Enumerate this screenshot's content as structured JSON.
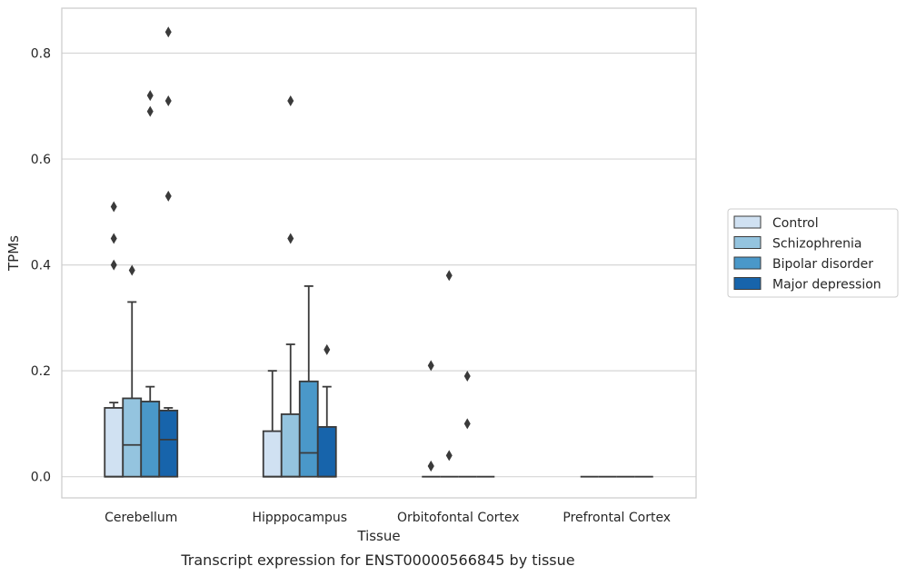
{
  "caption": "Transcript expression for ENST00000566845 by tissue",
  "chart_data": {
    "type": "box",
    "xlabel": "Tissue",
    "ylabel": "TPMs",
    "ylim": [
      -0.04,
      0.885
    ],
    "yticks": [
      0.0,
      0.2,
      0.4,
      0.6,
      0.8
    ],
    "ytick_labels": [
      "0.0",
      "0.2",
      "0.4",
      "0.6",
      "0.8"
    ],
    "grid": "horizontal",
    "legend_position": "right",
    "categories": [
      "Cerebellum",
      "Hipppocampus",
      "Orbitofontal Cortex",
      "Prefrontal Cortex"
    ],
    "series": [
      {
        "name": "Control",
        "color": "#d0e1f2",
        "boxes": [
          {
            "q1": 0.0,
            "median": 0.0,
            "q3": 0.13,
            "whisker_low": 0.0,
            "whisker_high": 0.14,
            "outliers": [
              0.51,
              0.45,
              0.4
            ]
          },
          {
            "q1": 0.0,
            "median": 0.0,
            "q3": 0.086,
            "whisker_low": 0.0,
            "whisker_high": 0.2,
            "outliers": []
          },
          {
            "q1": 0.0,
            "median": 0.0,
            "q3": 0.0,
            "whisker_low": 0.0,
            "whisker_high": 0.0,
            "outliers": [
              0.02,
              0.02,
              0.21
            ]
          },
          {
            "q1": 0.0,
            "median": 0.0,
            "q3": 0.0,
            "whisker_low": 0.0,
            "whisker_high": 0.0,
            "outliers": []
          }
        ]
      },
      {
        "name": "Schizophrenia",
        "color": "#94c4df",
        "boxes": [
          {
            "q1": 0.0,
            "median": 0.06,
            "q3": 0.148,
            "whisker_low": 0.0,
            "whisker_high": 0.33,
            "outliers": [
              0.39
            ]
          },
          {
            "q1": 0.0,
            "median": 0.0,
            "q3": 0.118,
            "whisker_low": 0.0,
            "whisker_high": 0.25,
            "outliers": [
              0.71,
              0.45
            ]
          },
          {
            "q1": 0.0,
            "median": 0.0,
            "q3": 0.0,
            "whisker_low": 0.0,
            "whisker_high": 0.0,
            "outliers": [
              0.38,
              0.04
            ]
          },
          {
            "q1": 0.0,
            "median": 0.0,
            "q3": 0.0,
            "whisker_low": 0.0,
            "whisker_high": 0.0,
            "outliers": []
          }
        ]
      },
      {
        "name": "Bipolar disorder",
        "color": "#4a98c9",
        "boxes": [
          {
            "q1": 0.0,
            "median": 0.0,
            "q3": 0.142,
            "whisker_low": 0.0,
            "whisker_high": 0.17,
            "outliers": [
              0.72,
              0.69
            ]
          },
          {
            "q1": 0.0,
            "median": 0.045,
            "q3": 0.18,
            "whisker_low": 0.0,
            "whisker_high": 0.36,
            "outliers": []
          },
          {
            "q1": 0.0,
            "median": 0.0,
            "q3": 0.0,
            "whisker_low": 0.0,
            "whisker_high": 0.0,
            "outliers": [
              0.19,
              0.1
            ]
          },
          {
            "q1": 0.0,
            "median": 0.0,
            "q3": 0.0,
            "whisker_low": 0.0,
            "whisker_high": 0.0,
            "outliers": []
          }
        ]
      },
      {
        "name": "Major depression",
        "color": "#1764ab",
        "boxes": [
          {
            "q1": 0.0,
            "median": 0.07,
            "q3": 0.125,
            "whisker_low": 0.0,
            "whisker_high": 0.13,
            "outliers": [
              0.84,
              0.71,
              0.53
            ]
          },
          {
            "q1": 0.0,
            "median": 0.0,
            "q3": 0.094,
            "whisker_low": 0.0,
            "whisker_high": 0.17,
            "outliers": [
              0.24
            ]
          },
          {
            "q1": 0.0,
            "median": 0.0,
            "q3": 0.0,
            "whisker_low": 0.0,
            "whisker_high": 0.0,
            "outliers": []
          },
          {
            "q1": 0.0,
            "median": 0.0,
            "q3": 0.0,
            "whisker_low": 0.0,
            "whisker_high": 0.0,
            "outliers": []
          }
        ]
      }
    ]
  }
}
